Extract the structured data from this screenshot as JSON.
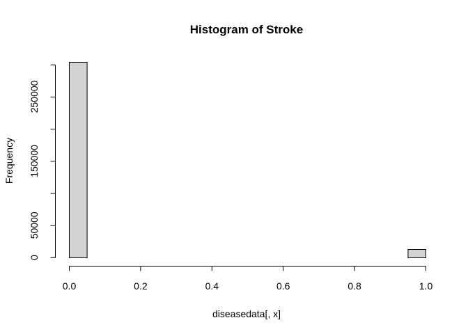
{
  "chart_data": {
    "type": "bar",
    "title": "Histogram of Stroke",
    "xlabel": "diseasedata[, x]",
    "ylabel": "Frequency",
    "bin_width": 0.05,
    "bins": [
      {
        "from": 0.0,
        "to": 0.05,
        "count": 304000
      },
      {
        "from": 0.05,
        "to": 0.1,
        "count": 0
      },
      {
        "from": 0.1,
        "to": 0.15,
        "count": 0
      },
      {
        "from": 0.15,
        "to": 0.2,
        "count": 0
      },
      {
        "from": 0.2,
        "to": 0.25,
        "count": 0
      },
      {
        "from": 0.25,
        "to": 0.3,
        "count": 0
      },
      {
        "from": 0.3,
        "to": 0.35,
        "count": 0
      },
      {
        "from": 0.35,
        "to": 0.4,
        "count": 0
      },
      {
        "from": 0.4,
        "to": 0.45,
        "count": 0
      },
      {
        "from": 0.45,
        "to": 0.5,
        "count": 0
      },
      {
        "from": 0.5,
        "to": 0.55,
        "count": 0
      },
      {
        "from": 0.55,
        "to": 0.6,
        "count": 0
      },
      {
        "from": 0.6,
        "to": 0.65,
        "count": 0
      },
      {
        "from": 0.65,
        "to": 0.7,
        "count": 0
      },
      {
        "from": 0.7,
        "to": 0.75,
        "count": 0
      },
      {
        "from": 0.75,
        "to": 0.8,
        "count": 0
      },
      {
        "from": 0.8,
        "to": 0.85,
        "count": 0
      },
      {
        "from": 0.85,
        "to": 0.9,
        "count": 0
      },
      {
        "from": 0.9,
        "to": 0.95,
        "count": 0
      },
      {
        "from": 0.95,
        "to": 1.0,
        "count": 13000
      }
    ],
    "xlim": [
      0,
      1
    ],
    "ylim": [
      0,
      304000
    ],
    "x_ticks": [
      {
        "value": 0.0,
        "label": "0.0"
      },
      {
        "value": 0.2,
        "label": "0.2"
      },
      {
        "value": 0.4,
        "label": "0.4"
      },
      {
        "value": 0.6,
        "label": "0.6"
      },
      {
        "value": 0.8,
        "label": "0.8"
      },
      {
        "value": 1.0,
        "label": "1.0"
      }
    ],
    "y_ticks": [
      {
        "value": 0,
        "label": "0"
      },
      {
        "value": 50000,
        "label": "50000"
      },
      {
        "value": 150000,
        "label": "150000"
      },
      {
        "value": 250000,
        "label": "250000"
      }
    ],
    "y_minor_ticks": [
      100000,
      200000,
      300000
    ],
    "grid": false,
    "legend": "none",
    "colors": {
      "bar_fill": "#d3d3d3",
      "bar_stroke": "#000000"
    }
  }
}
